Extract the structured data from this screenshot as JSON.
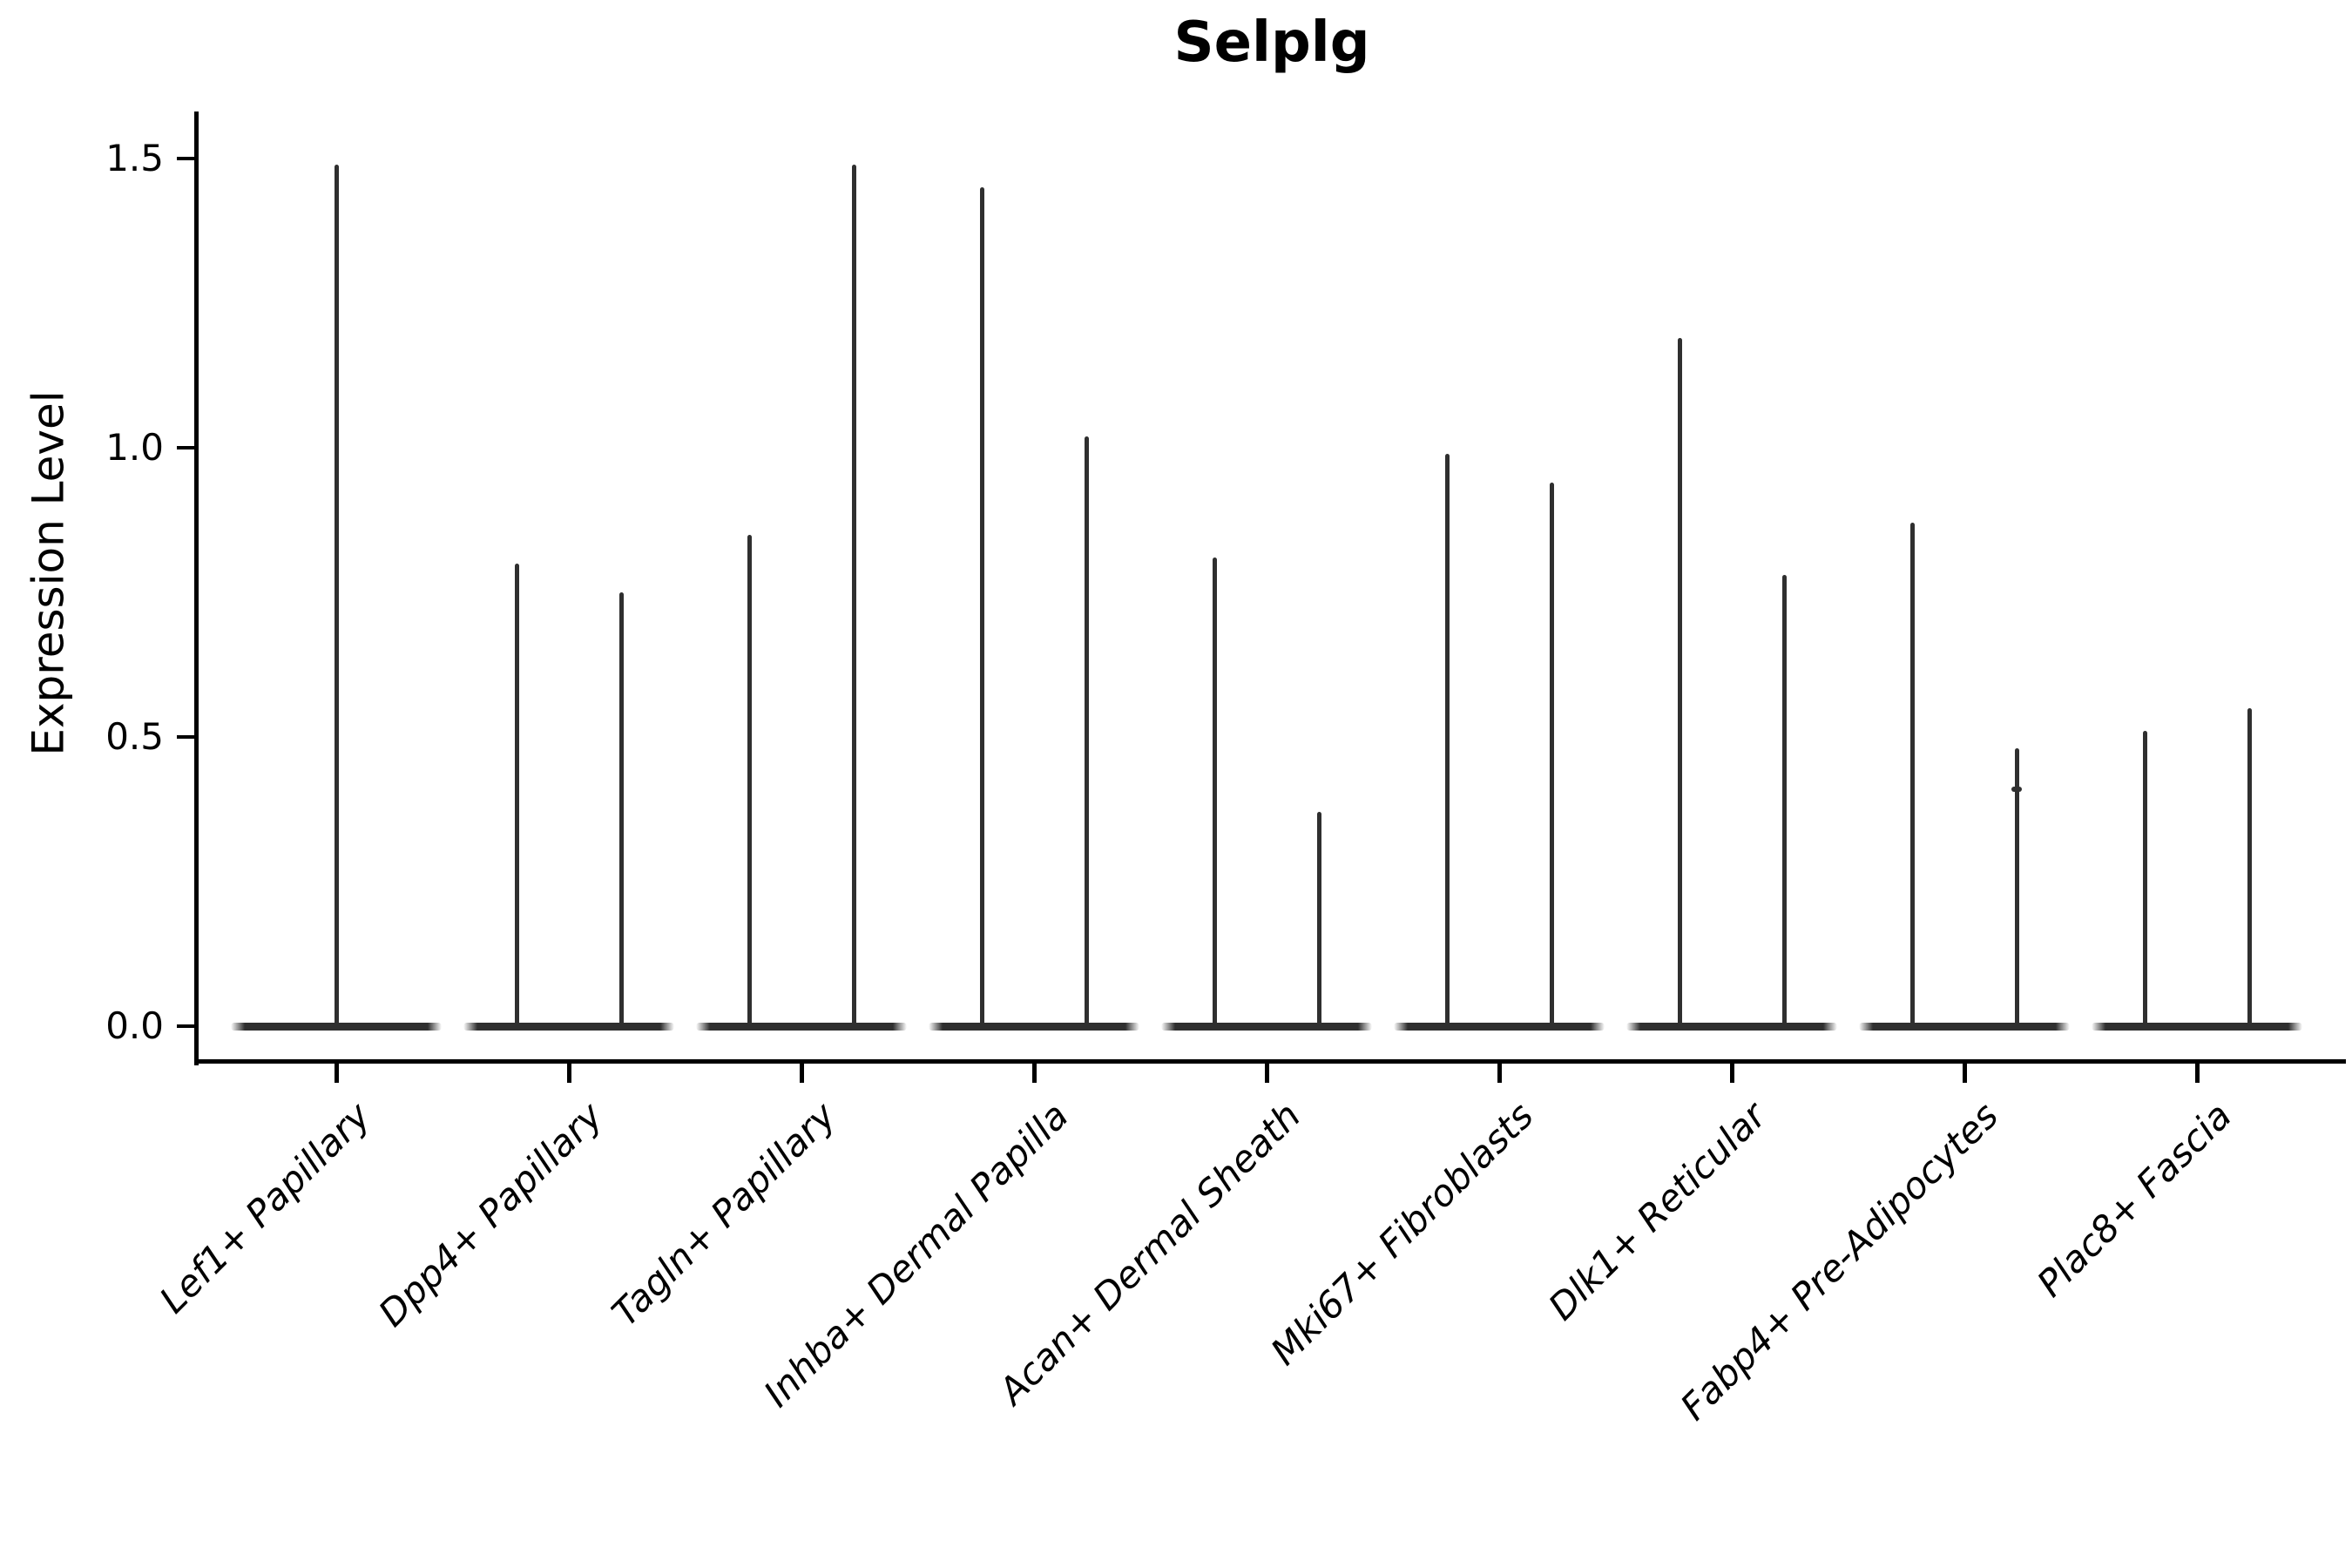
{
  "chart_data": {
    "type": "violin",
    "title": "Selplg",
    "ylabel": "Expression Level",
    "xlabel": "",
    "grid": false,
    "legend": "none",
    "ylim": [
      -0.06,
      1.58
    ],
    "yticks": [
      {
        "value": 0.0,
        "label": "0.0"
      },
      {
        "value": 0.5,
        "label": "0.5"
      },
      {
        "value": 1.0,
        "label": "1.0"
      },
      {
        "value": 1.5,
        "label": "1.5"
      }
    ],
    "categories": [
      "Lef1+ Papillary",
      "Dpp4+ Papillary",
      "Tagln+ Papillary",
      "Inhba+ Dermal Papilla",
      "Acan+ Dermal Sheath",
      "Mki67+ Fibroblasts",
      "Dlk1+ Reticular",
      "Fabp4+ Pre-Adipocytes",
      "Plac8+ Fascia"
    ],
    "violins": [
      {
        "category": "Lef1+ Papillary",
        "baseline_value": 0,
        "spikes": [
          {
            "side": "center",
            "max": 1.49
          }
        ]
      },
      {
        "category": "Dpp4+ Papillary",
        "baseline_value": 0,
        "spikes": [
          {
            "side": "left",
            "max": 0.8
          },
          {
            "side": "right",
            "max": 0.75
          }
        ]
      },
      {
        "category": "Tagln+ Papillary",
        "baseline_value": 0,
        "spikes": [
          {
            "side": "left",
            "max": 0.85
          },
          {
            "side": "right",
            "max": 1.49
          }
        ]
      },
      {
        "category": "Inhba+ Dermal Papilla",
        "baseline_value": 0,
        "spikes": [
          {
            "side": "left",
            "max": 1.45
          },
          {
            "side": "right",
            "max": 1.02
          }
        ]
      },
      {
        "category": "Acan+ Dermal Sheath",
        "baseline_value": 0,
        "spikes": [
          {
            "side": "left",
            "max": 0.81
          },
          {
            "side": "right",
            "max": 0.37
          }
        ]
      },
      {
        "category": "Mki67+ Fibroblasts",
        "baseline_value": 0,
        "spikes": [
          {
            "side": "left",
            "max": 0.99
          },
          {
            "side": "right",
            "max": 0.94
          }
        ]
      },
      {
        "category": "Dlk1+ Reticular",
        "baseline_value": 0,
        "spikes": [
          {
            "side": "left",
            "max": 1.19
          },
          {
            "side": "right",
            "max": 0.78
          }
        ]
      },
      {
        "category": "Fabp4+ Pre-Adipocytes",
        "baseline_value": 0,
        "spikes": [
          {
            "side": "left",
            "max": 0.87
          },
          {
            "side": "right",
            "max": 0.48
          }
        ]
      },
      {
        "category": "Plac8+ Fascia",
        "baseline_value": 0,
        "spikes": [
          {
            "side": "left",
            "max": 0.51
          },
          {
            "side": "right",
            "max": 0.55
          }
        ]
      }
    ],
    "outlier_points": [
      {
        "category": "Fabp4+ Pre-Adipocytes",
        "side": "right",
        "value": 0.41
      }
    ],
    "colors": {
      "violin": "#2f2f2f",
      "axis": "#000000",
      "text": "#000000",
      "background": "#ffffff"
    }
  }
}
